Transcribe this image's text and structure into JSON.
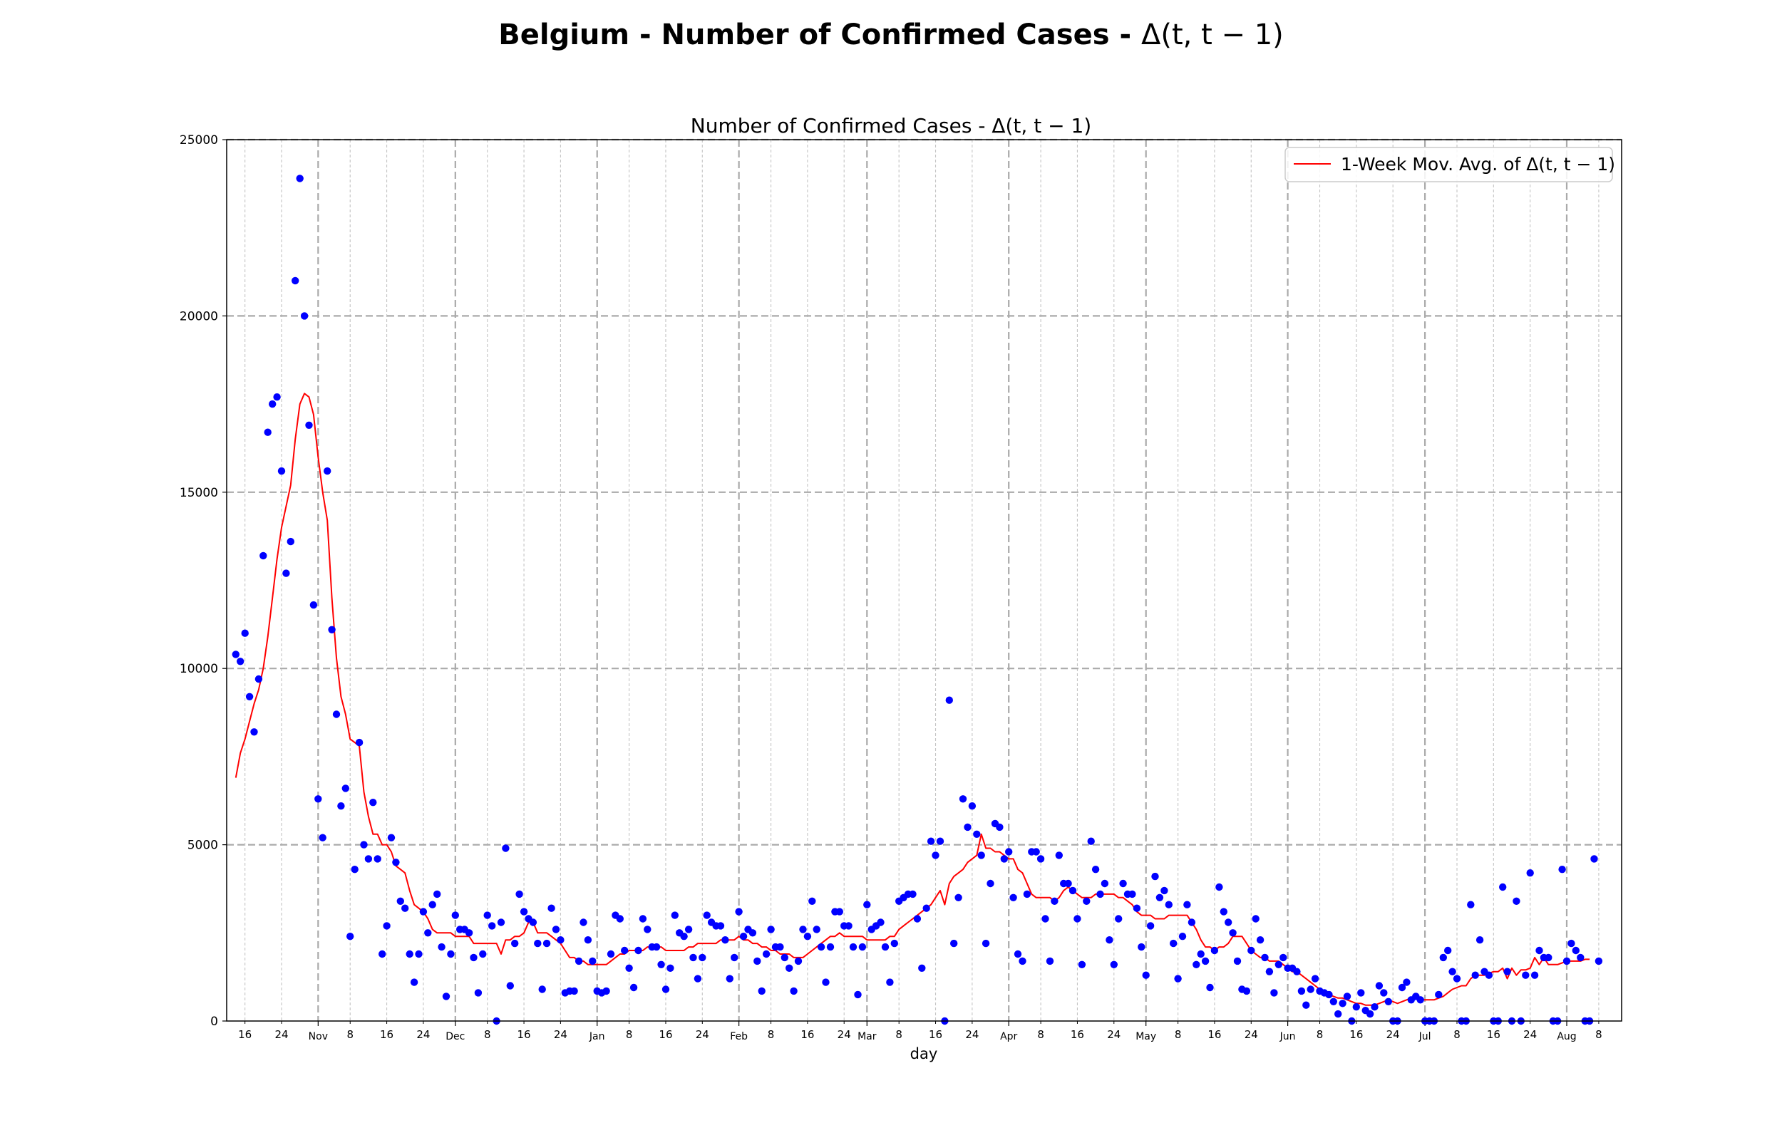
{
  "figure": {
    "suptitle_bold": "Belgium - Number of Confirmed Cases - ",
    "suptitle_math": "Δ(t, t − 1)"
  },
  "chart_data": {
    "type": "scatter",
    "title": "Number of Confirmed Cases - Δ(t, t − 1)",
    "xlabel": "day",
    "ylabel": "",
    "ylim": [
      0,
      25000
    ],
    "yticks": [
      0,
      5000,
      10000,
      15000,
      20000,
      25000
    ],
    "xlim": [
      "2020-10-12",
      "2021-08-13"
    ],
    "x_major_ticks": [
      {
        "date": "2020-11-01",
        "label": "Nov"
      },
      {
        "date": "2020-12-01",
        "label": "Dec"
      },
      {
        "date": "2021-01-01",
        "label": "Jan"
      },
      {
        "date": "2021-02-01",
        "label": "Feb"
      },
      {
        "date": "2021-03-01",
        "label": "Mar"
      },
      {
        "date": "2021-04-01",
        "label": "Apr"
      },
      {
        "date": "2021-05-01",
        "label": "May"
      },
      {
        "date": "2021-06-01",
        "label": "Jun"
      },
      {
        "date": "2021-07-01",
        "label": "Jul"
      },
      {
        "date": "2021-08-01",
        "label": "Aug"
      }
    ],
    "x_minor_tick_days": [
      8,
      16,
      24
    ],
    "grid": true,
    "legend": {
      "position": "upper right",
      "entries": [
        "1-Week Mov. Avg. of Δ(t, t − 1)"
      ]
    },
    "colors": {
      "points": "#0000ff",
      "moving_average": "#ff0000"
    },
    "series": [
      {
        "name": "",
        "x_start": "2020-10-14",
        "interval_days": 1,
        "values": [
          10400,
          10200,
          11000,
          9200,
          8200,
          9700,
          13200,
          16700,
          17500,
          17700,
          15600,
          12700,
          13600,
          21000,
          23900,
          20000,
          16900,
          11800,
          6300,
          5200,
          15600,
          11100,
          8700,
          6100,
          6600,
          2400,
          4300,
          7900,
          5000,
          4600,
          6200,
          4600,
          1900,
          2700,
          5200,
          4500,
          3400,
          3200,
          1900,
          1100,
          1900,
          3100,
          2500,
          3300,
          3600,
          2100,
          700,
          1900,
          3000,
          2600,
          2600,
          2500,
          1800,
          800,
          1900,
          3000,
          2700,
          0,
          2800,
          4900,
          1000,
          2200,
          3600,
          3100,
          2900,
          2800,
          2200,
          900,
          2200,
          3200,
          2600,
          2300,
          800,
          850,
          850,
          1700,
          2800,
          2300,
          1700,
          850,
          800,
          850,
          1900,
          3000,
          2900,
          2000,
          1500,
          950,
          2000,
          2900,
          2600,
          2100,
          2100,
          1600,
          900,
          1500,
          3000,
          2500,
          2400,
          2600,
          1800,
          1200,
          1800,
          3000,
          2800,
          2700,
          2700,
          2300,
          1200,
          1800,
          3100,
          2400,
          2600,
          2500,
          1700,
          850,
          1900,
          2600,
          2100,
          2100,
          1800,
          1500,
          850,
          1700,
          2600,
          2400,
          3400,
          2600,
          2100,
          1100,
          2100,
          3100,
          3100,
          2700,
          2700,
          2100,
          750,
          2100,
          3300,
          2600,
          2700,
          2800,
          2100,
          1100,
          2200,
          3400,
          3500,
          3600,
          3600,
          2900,
          1500,
          3200,
          5100,
          4700,
          5100,
          0,
          9100,
          2200,
          3500,
          6300,
          5500,
          6100,
          5300,
          4700,
          2200,
          3900,
          5600,
          5500,
          4600,
          4800,
          3500,
          1900,
          1700,
          3600,
          4800,
          4800,
          4600,
          2900,
          1700,
          3400,
          4700,
          3900,
          3900,
          3700,
          2900,
          1600,
          3400,
          5100,
          4300,
          3600,
          3900,
          2300,
          1600,
          2900,
          3900,
          3600,
          3600,
          3200,
          2100,
          1300,
          2700,
          4100,
          3500,
          3700,
          3300,
          2200,
          1200,
          2400,
          3300,
          2800,
          1600,
          1900,
          1700,
          950,
          2000,
          3800,
          3100,
          2800,
          2500,
          1700,
          900,
          850,
          2000,
          2900,
          2300,
          1800,
          1400,
          800,
          1600,
          1800,
          1500,
          1500,
          1400,
          850,
          450,
          900,
          1200,
          850,
          800,
          750,
          550,
          200,
          500,
          700,
          0,
          400,
          800,
          300,
          200,
          400,
          1000,
          800,
          550,
          0,
          0,
          950,
          1100,
          600,
          700,
          600,
          0,
          0,
          0,
          750,
          1800,
          2000,
          1400,
          1200,
          0,
          0,
          3300,
          1300,
          2300,
          1400,
          1300,
          0,
          0,
          3800,
          1400,
          0,
          3400,
          0,
          1300,
          4200,
          1300,
          2000,
          1800,
          1800,
          0,
          0,
          4300,
          1700,
          2200,
          2000,
          1800,
          0,
          0,
          4600,
          1700
        ]
      },
      {
        "name": "1-Week Mov. Avg. of Δ(t, t − 1)",
        "x_start": "2020-10-14",
        "interval_days": 1,
        "values": [
          6900,
          7600,
          8000,
          8500,
          9000,
          9400,
          10000,
          10900,
          12000,
          13100,
          14000,
          14600,
          15200,
          16500,
          17500,
          17800,
          17700,
          17200,
          16000,
          15000,
          14200,
          12000,
          10300,
          9200,
          8700,
          8000,
          7900,
          7800,
          6500,
          5800,
          5300,
          5300,
          5000,
          5000,
          4800,
          4400,
          4300,
          4200,
          3700,
          3300,
          3200,
          3100,
          2900,
          2600,
          2500,
          2500,
          2500,
          2500,
          2400,
          2400,
          2400,
          2400,
          2200,
          2200,
          2200,
          2200,
          2200,
          2200,
          1900,
          2300,
          2300,
          2400,
          2400,
          2500,
          2800,
          2800,
          2500,
          2500,
          2500,
          2400,
          2300,
          2200,
          2000,
          1800,
          1800,
          1700,
          1700,
          1600,
          1600,
          1600,
          1600,
          1600,
          1700,
          1800,
          1900,
          1900,
          2000,
          2000,
          2000,
          2000,
          2100,
          2100,
          2100,
          2100,
          2000,
          2000,
          2000,
          2000,
          2000,
          2100,
          2100,
          2200,
          2200,
          2200,
          2200,
          2200,
          2300,
          2300,
          2300,
          2300,
          2400,
          2300,
          2300,
          2200,
          2200,
          2100,
          2100,
          2000,
          2000,
          1900,
          1900,
          1900,
          1800,
          1800,
          1800,
          1900,
          2000,
          2100,
          2200,
          2300,
          2400,
          2400,
          2500,
          2400,
          2400,
          2400,
          2400,
          2400,
          2300,
          2300,
          2300,
          2300,
          2300,
          2400,
          2400,
          2600,
          2700,
          2800,
          2900,
          3000,
          3100,
          3200,
          3300,
          3500,
          3700,
          3300,
          3900,
          4100,
          4200,
          4300,
          4500,
          4600,
          4700,
          5300,
          4900,
          4900,
          4800,
          4800,
          4700,
          4600,
          4600,
          4300,
          4200,
          3900,
          3600,
          3500,
          3500,
          3500,
          3500,
          3400,
          3500,
          3700,
          3800,
          3700,
          3600,
          3500,
          3500,
          3500,
          3600,
          3600,
          3600,
          3600,
          3600,
          3500,
          3500,
          3400,
          3300,
          3100,
          3000,
          3000,
          3000,
          2900,
          2900,
          2900,
          3000,
          3000,
          3000,
          3000,
          3000,
          2800,
          2600,
          2300,
          2100,
          2100,
          2000,
          2100,
          2100,
          2200,
          2400,
          2400,
          2400,
          2200,
          2000,
          1900,
          1800,
          1800,
          1700,
          1700,
          1700,
          1600,
          1500,
          1400,
          1400,
          1300,
          1200,
          1100,
          1000,
          900,
          800,
          750,
          700,
          650,
          650,
          600,
          550,
          500,
          500,
          450,
          450,
          450,
          500,
          550,
          600,
          550,
          500,
          550,
          600,
          650,
          650,
          600,
          600,
          600,
          600,
          650,
          700,
          800,
          900,
          950,
          1000,
          1000,
          1200,
          1300,
          1300,
          1300,
          1350,
          1400,
          1400,
          1500,
          1200,
          1500,
          1300,
          1450,
          1450,
          1500,
          1800,
          1600,
          1800,
          1600,
          1600,
          1600,
          1650,
          1700,
          1700,
          1700,
          1700,
          1750,
          1750
        ]
      }
    ]
  }
}
